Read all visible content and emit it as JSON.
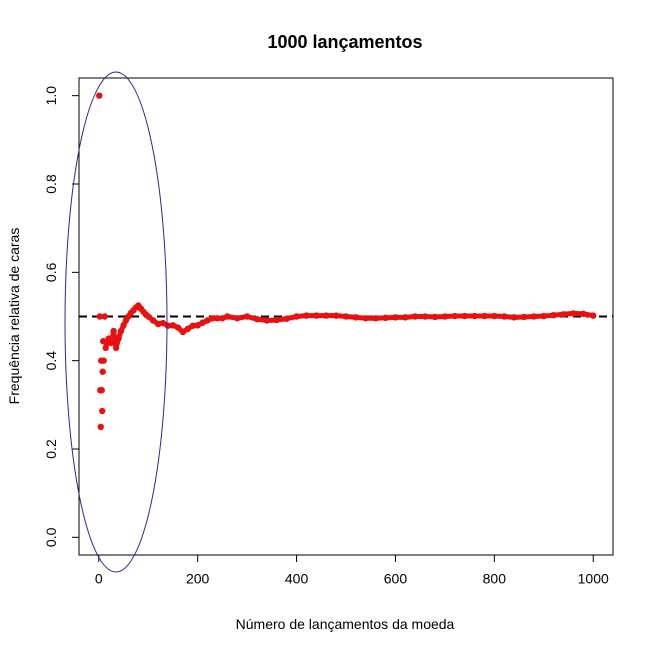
{
  "chart_data": {
    "type": "scatter",
    "title": "1000 lançamentos",
    "xlabel": "Número de lançamentos da moeda",
    "ylabel": "Frequência relativa de caras",
    "xlim": [
      -40,
      1040
    ],
    "ylim": [
      -0.04,
      1.04
    ],
    "x_ticks": [
      0,
      200,
      400,
      600,
      800,
      1000
    ],
    "y_ticks": [
      0.0,
      0.2,
      0.4,
      0.6,
      0.8,
      1.0
    ],
    "x_tick_labels": [
      "0",
      "200",
      "400",
      "600",
      "800",
      "1000"
    ],
    "y_tick_labels": [
      "0.0",
      "0.2",
      "0.4",
      "0.6",
      "0.8",
      "1.0"
    ],
    "reference_line": {
      "y": 0.5,
      "style": "dashed",
      "color": "#000000"
    },
    "point_color": "#e8110f",
    "ellipse_color": "#2b2b8f",
    "series": [
      {
        "x": [
          1,
          2,
          3,
          4,
          5,
          6,
          7,
          8,
          9,
          10,
          12,
          14,
          16,
          18,
          20,
          25,
          30,
          35,
          40,
          45,
          50,
          55,
          60,
          65,
          70,
          75,
          80,
          85,
          90,
          95,
          100,
          110,
          120,
          130,
          140,
          150,
          160,
          170,
          180,
          190,
          200,
          210,
          220,
          230,
          240,
          250,
          260,
          280,
          300,
          320,
          340,
          360,
          380,
          400,
          420,
          440,
          460,
          480,
          500,
          520,
          540,
          560,
          580,
          600,
          620,
          640,
          660,
          680,
          700,
          720,
          740,
          760,
          780,
          800,
          820,
          840,
          860,
          880,
          900,
          920,
          940,
          960,
          980,
          1000
        ],
        "y": [
          1.0,
          0.5,
          0.333,
          0.25,
          0.4,
          0.333,
          0.286,
          0.375,
          0.444,
          0.4,
          0.5,
          0.429,
          0.438,
          0.444,
          0.45,
          0.44,
          0.467,
          0.429,
          0.45,
          0.467,
          0.48,
          0.491,
          0.5,
          0.508,
          0.514,
          0.52,
          0.525,
          0.518,
          0.511,
          0.505,
          0.5,
          0.491,
          0.483,
          0.485,
          0.479,
          0.48,
          0.475,
          0.465,
          0.472,
          0.479,
          0.48,
          0.486,
          0.491,
          0.496,
          0.496,
          0.496,
          0.5,
          0.496,
          0.5,
          0.494,
          0.491,
          0.492,
          0.495,
          0.5,
          0.502,
          0.502,
          0.502,
          0.502,
          0.5,
          0.498,
          0.496,
          0.496,
          0.497,
          0.498,
          0.498,
          0.5,
          0.5,
          0.499,
          0.5,
          0.501,
          0.501,
          0.501,
          0.501,
          0.501,
          0.5,
          0.498,
          0.499,
          0.5,
          0.501,
          0.503,
          0.505,
          0.507,
          0.506,
          0.502
        ]
      }
    ]
  }
}
